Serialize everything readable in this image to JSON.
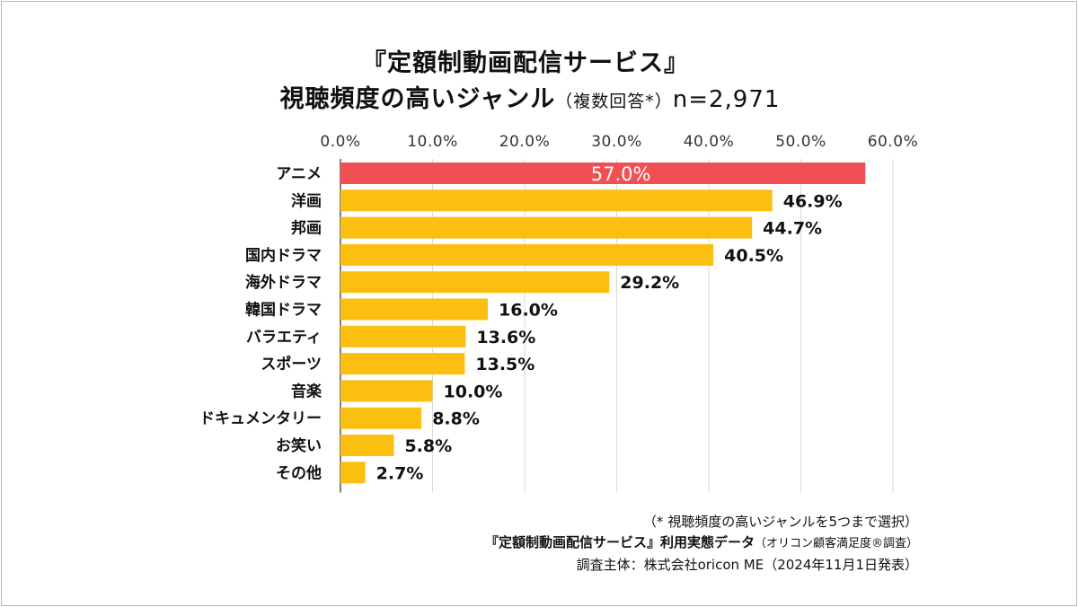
{
  "title": {
    "line1": "『定額制動画配信サービス』",
    "line2_main": "視聴頻度の高いジャンル",
    "line2_sub": "（複数回答*）",
    "line2_n": "n=2,971"
  },
  "chart_data": {
    "type": "bar",
    "orientation": "horizontal",
    "categories": [
      "アニメ",
      "洋画",
      "邦画",
      "国内ドラマ",
      "海外ドラマ",
      "韓国ドラマ",
      "バラエティ",
      "スポーツ",
      "音楽",
      "ドキュメンタリー",
      "お笑い",
      "その他"
    ],
    "values": [
      57.0,
      46.9,
      44.7,
      40.5,
      29.2,
      16.0,
      13.6,
      13.5,
      10.0,
      8.8,
      5.8,
      2.7
    ],
    "value_labels": [
      "57.0%",
      "46.9%",
      "44.7%",
      "40.5%",
      "29.2%",
      "16.0%",
      "13.6%",
      "13.5%",
      "10.0%",
      "8.8%",
      "5.8%",
      "2.7%"
    ],
    "xlim": [
      0,
      60
    ],
    "ticks": [
      0,
      10,
      20,
      30,
      40,
      50,
      60
    ],
    "tick_labels": [
      "0.0%",
      "10.0%",
      "20.0%",
      "30.0%",
      "40.0%",
      "50.0%",
      "60.0%"
    ],
    "highlight_color": "#f24f55",
    "bar_color": "#fbbf12",
    "grid": true
  },
  "footnotes": {
    "note": "（* 視聴頻度の高いジャンルを5つまで選択）",
    "source_main": "『定額制動画配信サービス』利用実態データ",
    "source_sub": "（オリコン顧客満足度®調査）",
    "organizer": "調査主体：株式会社oricon ME（2024年11月1日発表）"
  }
}
